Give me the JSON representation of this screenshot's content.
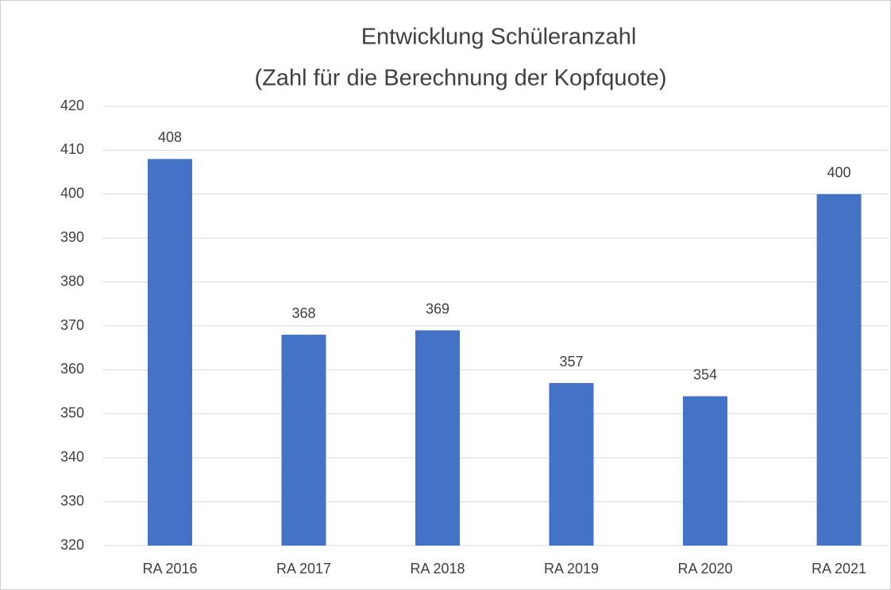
{
  "chart_data": {
    "type": "bar",
    "title": [
      "Entwicklung Schüleranzahl",
      "(Zahl für die Berechnung der Kopfquote)"
    ],
    "categories": [
      "RA 2016",
      "RA 2017",
      "RA 2018",
      "RA 2019",
      "RA 2020",
      "RA 2021"
    ],
    "values": [
      408,
      368,
      369,
      357,
      354,
      400
    ],
    "color": "#4472c4",
    "ylim": [
      320,
      420
    ],
    "yticks": [
      320,
      330,
      340,
      350,
      360,
      370,
      380,
      390,
      400,
      410,
      420
    ],
    "grid": true
  }
}
